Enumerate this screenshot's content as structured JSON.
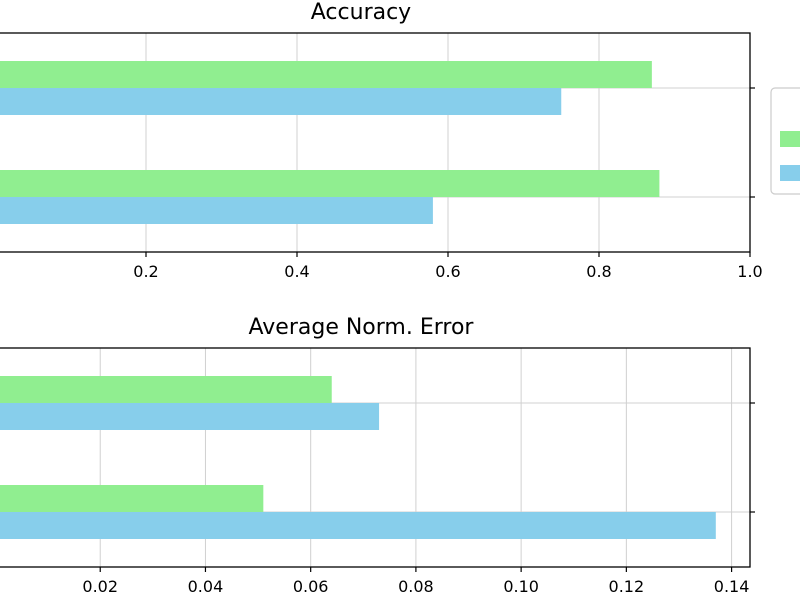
{
  "chart_data": [
    {
      "type": "bar",
      "orientation": "horizontal",
      "title": "Accuracy",
      "xlabel": "",
      "ylabel": "",
      "xlim": [
        0.0,
        1.0
      ],
      "xticks": [
        "0.2",
        "0.4",
        "0.6",
        "0.8",
        "1.0"
      ],
      "xtick_values": [
        0.2,
        0.4,
        0.6,
        0.8,
        1.0
      ],
      "grid": true,
      "legend": "right",
      "groups": 2,
      "series": [
        {
          "color": "#90ee90",
          "values": [
            0.87,
            0.88
          ]
        },
        {
          "color": "#87ceeb",
          "values": [
            0.75,
            0.58
          ]
        }
      ]
    },
    {
      "type": "bar",
      "orientation": "horizontal",
      "title": "Average Norm. Error",
      "xlabel": "",
      "ylabel": "",
      "xlim": [
        0.0,
        0.1435
      ],
      "xticks": [
        "0.02",
        "0.04",
        "0.06",
        "0.08",
        "0.10",
        "0.12",
        "0.14"
      ],
      "xtick_values": [
        0.02,
        0.04,
        0.06,
        0.08,
        0.1,
        0.12,
        0.14
      ],
      "grid": true,
      "groups": 2,
      "series": [
        {
          "color": "#90ee90",
          "values": [
            0.064,
            0.051
          ]
        },
        {
          "color": "#87ceeb",
          "values": [
            0.073,
            0.137
          ]
        }
      ]
    }
  ]
}
